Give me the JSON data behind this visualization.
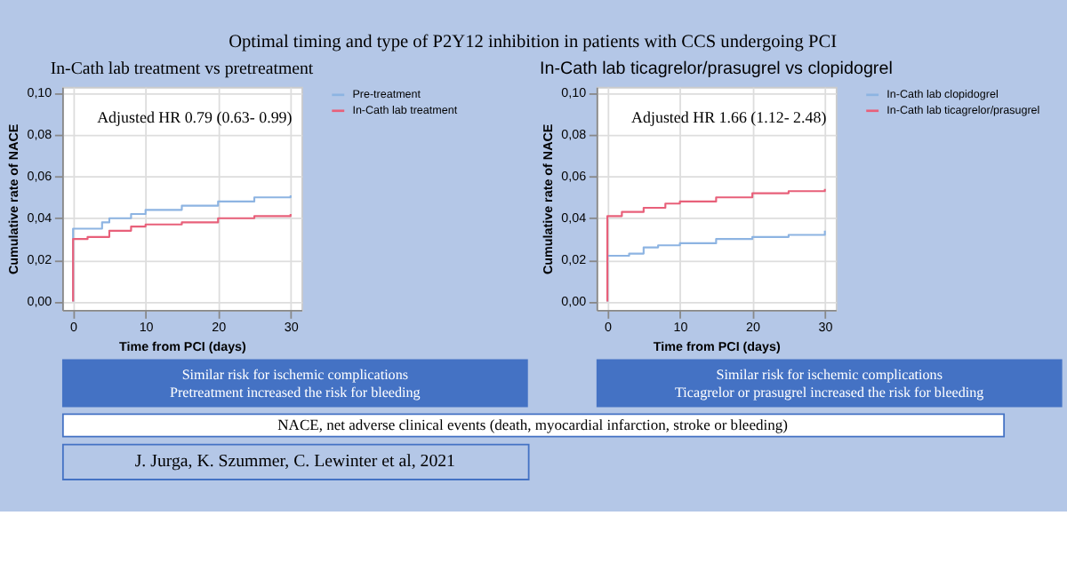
{
  "chart_data": [
    {
      "type": "step",
      "title": "In-Cath lab treatment vs pretreatment",
      "xlabel": "Time from PCI (days)",
      "ylabel": "Cumulative rate of NACE",
      "xlim": [
        -1.5,
        31.5
      ],
      "xticks": [
        0,
        10,
        20,
        30
      ],
      "ylim": [
        -0.004,
        0.103
      ],
      "yticks": [
        {
          "value": 0,
          "label": "0,00"
        },
        {
          "value": 0.02,
          "label": "0,02"
        },
        {
          "value": 0.04,
          "label": "0,04"
        },
        {
          "value": 0.06,
          "label": "0,06"
        },
        {
          "value": 0.08,
          "label": "0,08"
        },
        {
          "value": 0.1,
          "label": "0,10"
        }
      ],
      "grid": true,
      "legend": "right",
      "marker": "none",
      "line_style": "solid",
      "series": [
        {
          "name": "Pre-treatment",
          "color": "#8db4e2",
          "x": [
            0,
            0,
            2,
            4,
            5,
            8,
            10,
            15,
            20,
            25,
            30
          ],
          "values": [
            0,
            0.035,
            0.035,
            0.038,
            0.04,
            0.042,
            0.044,
            0.046,
            0.048,
            0.05,
            0.051
          ]
        },
        {
          "name": "In-Cath lab treatment",
          "color": "#e8607a",
          "x": [
            0,
            0,
            2,
            3,
            5,
            8,
            10,
            15,
            20,
            25,
            30
          ],
          "values": [
            0,
            0.03,
            0.031,
            0.031,
            0.034,
            0.036,
            0.037,
            0.038,
            0.04,
            0.041,
            0.042
          ]
        }
      ],
      "annotations": [
        "Adjusted HR 0.79 (0.63- 0.99)",
        "Similar risk for ischemic complications\nPretreatment increased the risk for bleeding",
        "Optimal timing and type of P2Y12 inhibition in patients with CCS undergoing PCI",
        "NACE, net adverse clinical events (death, myocardial infarction, stroke or bleeding)",
        "J. Jurga, K. Szummer, C. Lewinter  et al, 2021"
      ]
    },
    {
      "type": "step",
      "title": "In-Cath lab ticagrelor/prasugrel vs clopidogrel",
      "xlabel": "Time from PCI (days)",
      "ylabel": "Cumulative rate of NACE",
      "xlim": [
        -1.5,
        31.5
      ],
      "xticks": [
        0,
        10,
        20,
        30
      ],
      "ylim": [
        -0.004,
        0.103
      ],
      "yticks": [
        {
          "value": 0,
          "label": "0,00"
        },
        {
          "value": 0.02,
          "label": "0,02"
        },
        {
          "value": 0.04,
          "label": "0,04"
        },
        {
          "value": 0.06,
          "label": "0,06"
        },
        {
          "value": 0.08,
          "label": "0,08"
        },
        {
          "value": 0.1,
          "label": "0,10"
        }
      ],
      "grid": true,
      "legend": "right",
      "marker": "none",
      "line_style": "solid",
      "series": [
        {
          "name": "In-Cath lab clopidogrel",
          "color": "#8db4e2",
          "x": [
            0,
            0,
            3,
            5,
            7,
            10,
            15,
            20,
            25,
            30
          ],
          "values": [
            0,
            0.022,
            0.023,
            0.026,
            0.027,
            0.028,
            0.03,
            0.031,
            0.032,
            0.034
          ]
        },
        {
          "name": "In-Cath lab ticagrelor/prasugrel",
          "color": "#e8607a",
          "x": [
            0,
            0,
            2,
            5,
            8,
            10,
            15,
            20,
            25,
            30
          ],
          "values": [
            0,
            0.041,
            0.043,
            0.045,
            0.047,
            0.048,
            0.05,
            0.052,
            0.053,
            0.054
          ]
        }
      ],
      "annotations": [
        "Adjusted HR 1.66 (1.12- 2.48)",
        "Similar risk for ischemic complications\nTicagrelor or prasugrel increased the risk for bleeding"
      ]
    }
  ]
}
